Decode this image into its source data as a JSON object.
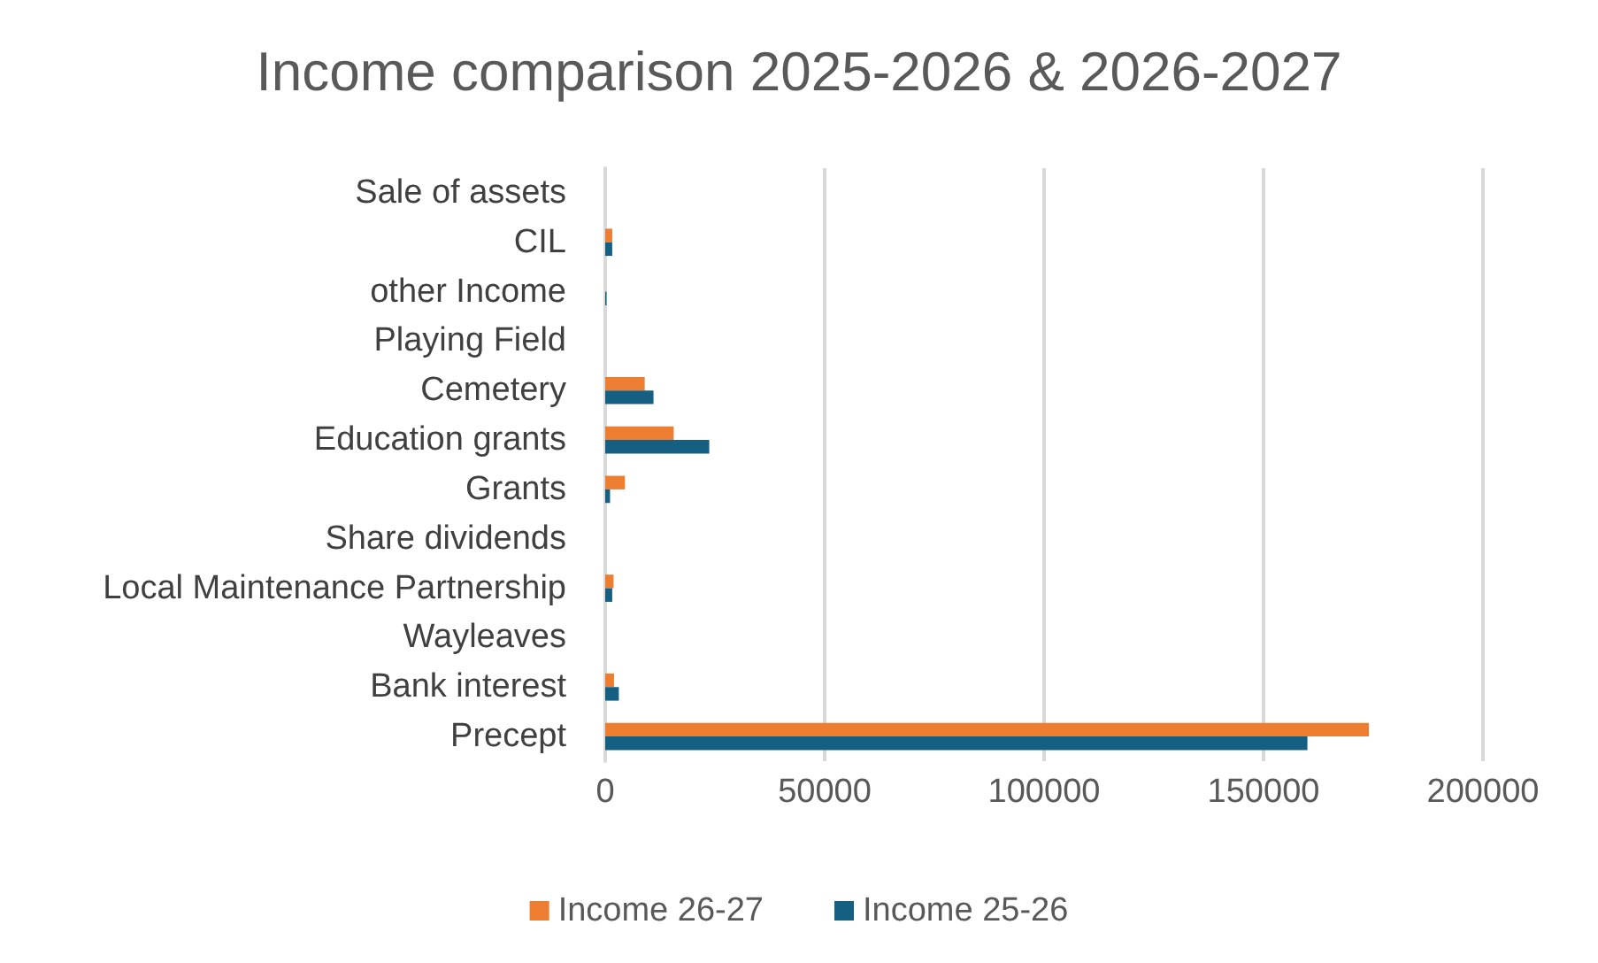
{
  "chart_data": {
    "type": "bar",
    "orientation": "horizontal",
    "title": "Income comparison 2025-2026 & 2026-2027",
    "categories": [
      "Sale of assets",
      "CIL",
      "other Income",
      "Playing Field",
      "Cemetery",
      "Education grants",
      "Grants",
      "Share dividends",
      "Local Maintenance Partnership",
      "Wayleaves",
      "Bank interest",
      "Precept"
    ],
    "series": [
      {
        "name": "Income 26-27",
        "color": "#ed7d31",
        "values": [
          0,
          1600,
          0,
          0,
          9000,
          15600,
          4500,
          0,
          1900,
          0,
          2000,
          174000
        ]
      },
      {
        "name": "Income 25-26",
        "color": "#156082",
        "values": [
          0,
          1600,
          300,
          0,
          11000,
          23700,
          1100,
          0,
          1600,
          0,
          3100,
          160000
        ]
      }
    ],
    "xlim": [
      0,
      200000
    ],
    "xticks": [
      0,
      50000,
      100000,
      150000,
      200000
    ],
    "grid": "x",
    "legend": "bottom"
  }
}
